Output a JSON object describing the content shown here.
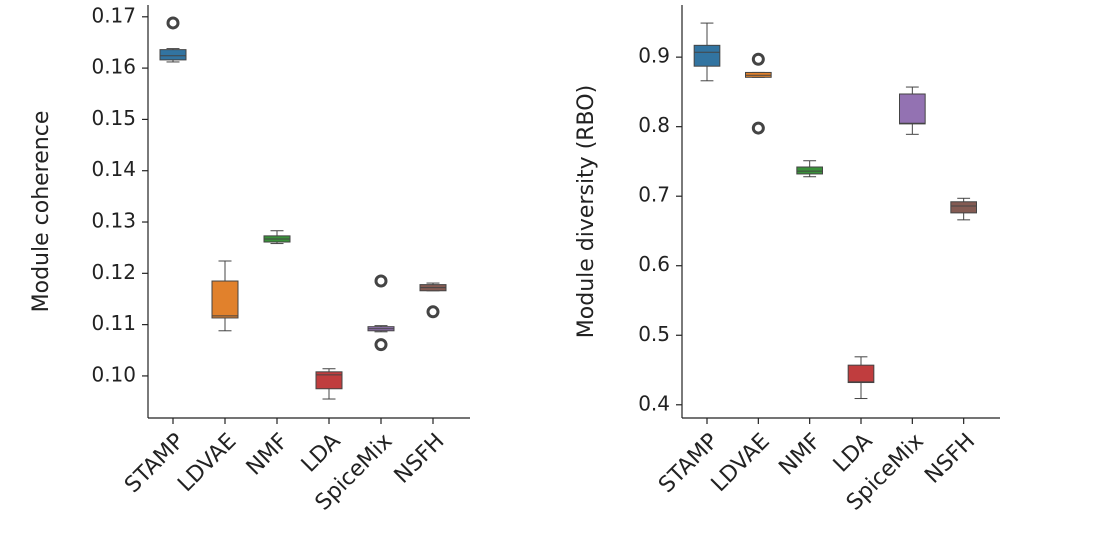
{
  "chart_data": [
    {
      "type": "box",
      "ylabel": "Module coherence",
      "categories": [
        "STAMP",
        "LDVAE",
        "NMF",
        "LDA",
        "SpiceMix",
        "NSFH"
      ],
      "colors": [
        "#3274a1",
        "#e1812c",
        "#3a923a",
        "#c03d3e",
        "#9372b2",
        "#845b53"
      ],
      "boxes": [
        {
          "min": 0.1612,
          "q1": 0.1616,
          "median": 0.1624,
          "q3": 0.1636,
          "max": 0.1638,
          "outliers": [
            0.1688
          ]
        },
        {
          "min": 0.1088,
          "q1": 0.1113,
          "median": 0.1117,
          "q3": 0.1185,
          "max": 0.1224,
          "outliers": []
        },
        {
          "min": 0.1258,
          "q1": 0.1261,
          "median": 0.1267,
          "q3": 0.1273,
          "max": 0.1283,
          "outliers": []
        },
        {
          "min": 0.0955,
          "q1": 0.0975,
          "median": 0.1002,
          "q3": 0.1008,
          "max": 0.1014,
          "outliers": []
        },
        {
          "min": 0.1086,
          "q1": 0.1088,
          "median": 0.1092,
          "q3": 0.1096,
          "max": 0.1098,
          "outliers": [
            0.1185,
            0.1061
          ]
        },
        {
          "min": 0.1166,
          "q1": 0.1166,
          "median": 0.1172,
          "q3": 0.1178,
          "max": 0.1181,
          "outliers": [
            0.1125
          ]
        }
      ],
      "ylim": [
        0.0918,
        0.1723
      ],
      "yticks": [
        {
          "value": 0.1,
          "label": "0.10"
        },
        0.11,
        0.12,
        0.13,
        0.14,
        0.15,
        0.16,
        0.17
      ]
    },
    {
      "type": "box",
      "ylabel": "Module diversity (RBO)",
      "categories": [
        "STAMP",
        "LDVAE",
        "NMF",
        "LDA",
        "SpiceMix",
        "NSFH"
      ],
      "colors": [
        "#3274a1",
        "#e1812c",
        "#3a923a",
        "#c03d3e",
        "#9372b2",
        "#845b53"
      ],
      "boxes": [
        {
          "min": 0.866,
          "q1": 0.887,
          "median": 0.907,
          "q3": 0.917,
          "max": 0.949,
          "outliers": []
        },
        {
          "min": 0.871,
          "q1": 0.871,
          "median": 0.874,
          "q3": 0.878,
          "max": 0.878,
          "outliers": [
            0.897,
            0.798
          ]
        },
        {
          "min": 0.728,
          "q1": 0.732,
          "median": 0.736,
          "q3": 0.742,
          "max": 0.751,
          "outliers": []
        },
        {
          "min": 0.409,
          "q1": 0.432,
          "median": 0.433,
          "q3": 0.457,
          "max": 0.469,
          "outliers": []
        },
        {
          "min": 0.789,
          "q1": 0.804,
          "median": 0.805,
          "q3": 0.847,
          "max": 0.857,
          "outliers": []
        },
        {
          "min": 0.666,
          "q1": 0.676,
          "median": 0.686,
          "q3": 0.692,
          "max": 0.697,
          "outliers": []
        }
      ],
      "ylim": [
        0.381,
        0.975
      ],
      "yticks": [
        0.4,
        0.5,
        0.6,
        0.7,
        0.8,
        0.9
      ]
    }
  ]
}
